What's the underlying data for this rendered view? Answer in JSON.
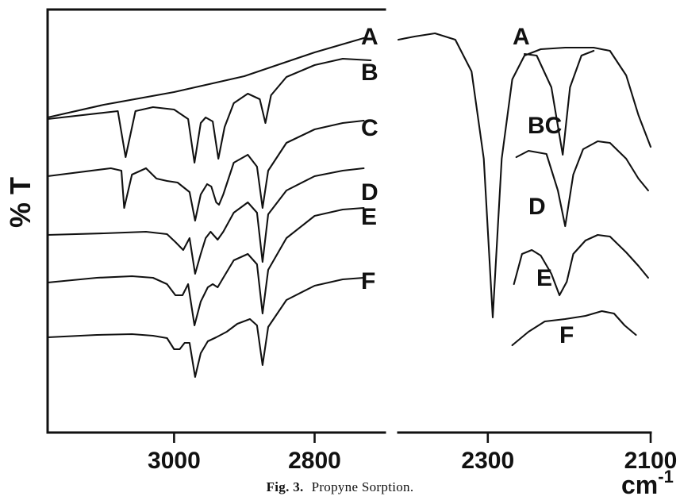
{
  "chart_data": {
    "type": "line",
    "ylabel": "% T",
    "xunit": "cm",
    "xunit_sup": "-1",
    "caption_prefix": "Fig. 3.",
    "caption_text": "Propyne Sorption.",
    "xaxis_left": {
      "range": [
        3180,
        2700
      ],
      "ticks": [
        3000,
        2800
      ],
      "tick_labels": [
        "3000",
        "2800"
      ]
    },
    "xaxis_right": {
      "range": [
        2410,
        2100
      ],
      "ticks": [
        2300,
        2100
      ],
      "tick_labels": [
        "2300",
        "2100"
      ]
    },
    "axis_break": "between 2700 and 2410",
    "series_labels_left": [
      "A",
      "B",
      "C",
      "D",
      "E",
      "F"
    ],
    "series_labels_right": [
      "A",
      "BC",
      "D",
      "E",
      "F"
    ],
    "series": [
      {
        "name": "A",
        "panel": "left",
        "points": [
          [
            3180,
            148
          ],
          [
            3100,
            132
          ],
          [
            3000,
            116
          ],
          [
            2900,
            96
          ],
          [
            2800,
            66
          ],
          [
            2730,
            48
          ]
        ]
      },
      {
        "name": "B",
        "panel": "left",
        "points": [
          [
            3180,
            150
          ],
          [
            3080,
            140
          ],
          [
            3069,
            198
          ],
          [
            3055,
            140
          ],
          [
            3030,
            135
          ],
          [
            3000,
            138
          ],
          [
            2980,
            150
          ],
          [
            2971,
            205
          ],
          [
            2962,
            155
          ],
          [
            2955,
            148
          ],
          [
            2945,
            153
          ],
          [
            2937,
            200
          ],
          [
            2928,
            160
          ],
          [
            2915,
            130
          ],
          [
            2895,
            118
          ],
          [
            2878,
            125
          ],
          [
            2870,
            155
          ],
          [
            2862,
            120
          ],
          [
            2840,
            97
          ],
          [
            2800,
            82
          ],
          [
            2760,
            74
          ],
          [
            2720,
            76
          ]
        ]
      },
      {
        "name": "C",
        "panel": "left",
        "points": [
          [
            3180,
            222
          ],
          [
            3090,
            212
          ],
          [
            3075,
            215
          ],
          [
            3071,
            262
          ],
          [
            3060,
            220
          ],
          [
            3040,
            212
          ],
          [
            3025,
            225
          ],
          [
            3010,
            228
          ],
          [
            2995,
            230
          ],
          [
            2978,
            242
          ],
          [
            2970,
            278
          ],
          [
            2962,
            245
          ],
          [
            2953,
            232
          ],
          [
            2947,
            235
          ],
          [
            2940,
            255
          ],
          [
            2936,
            258
          ],
          [
            2930,
            245
          ],
          [
            2915,
            205
          ],
          [
            2895,
            195
          ],
          [
            2882,
            210
          ],
          [
            2874,
            262
          ],
          [
            2866,
            215
          ],
          [
            2840,
            180
          ],
          [
            2800,
            163
          ],
          [
            2760,
            155
          ],
          [
            2730,
            152
          ]
        ]
      },
      {
        "name": "D",
        "panel": "left",
        "points": [
          [
            3180,
            296
          ],
          [
            3100,
            294
          ],
          [
            3040,
            292
          ],
          [
            3010,
            295
          ],
          [
            2998,
            305
          ],
          [
            2987,
            315
          ],
          [
            2978,
            300
          ],
          [
            2970,
            345
          ],
          [
            2962,
            320
          ],
          [
            2955,
            300
          ],
          [
            2948,
            292
          ],
          [
            2938,
            302
          ],
          [
            2930,
            292
          ],
          [
            2915,
            268
          ],
          [
            2895,
            255
          ],
          [
            2882,
            268
          ],
          [
            2874,
            330
          ],
          [
            2866,
            270
          ],
          [
            2840,
            240
          ],
          [
            2800,
            222
          ],
          [
            2760,
            215
          ],
          [
            2730,
            212
          ]
        ]
      },
      {
        "name": "E",
        "panel": "left",
        "points": [
          [
            3180,
            356
          ],
          [
            3110,
            350
          ],
          [
            3060,
            348
          ],
          [
            3030,
            350
          ],
          [
            3010,
            358
          ],
          [
            2998,
            372
          ],
          [
            2988,
            372
          ],
          [
            2980,
            358
          ],
          [
            2971,
            410
          ],
          [
            2962,
            380
          ],
          [
            2952,
            362
          ],
          [
            2945,
            358
          ],
          [
            2938,
            362
          ],
          [
            2930,
            350
          ],
          [
            2915,
            328
          ],
          [
            2895,
            320
          ],
          [
            2882,
            333
          ],
          [
            2874,
            395
          ],
          [
            2866,
            340
          ],
          [
            2840,
            300
          ],
          [
            2800,
            272
          ],
          [
            2760,
            264
          ],
          [
            2730,
            262
          ]
        ]
      },
      {
        "name": "F",
        "panel": "left",
        "points": [
          [
            3180,
            425
          ],
          [
            3110,
            422
          ],
          [
            3060,
            421
          ],
          [
            3030,
            423
          ],
          [
            3010,
            426
          ],
          [
            3000,
            440
          ],
          [
            2992,
            440
          ],
          [
            2985,
            432
          ],
          [
            2978,
            432
          ],
          [
            2970,
            475
          ],
          [
            2962,
            445
          ],
          [
            2952,
            430
          ],
          [
            2940,
            425
          ],
          [
            2925,
            418
          ],
          [
            2910,
            408
          ],
          [
            2892,
            402
          ],
          [
            2882,
            410
          ],
          [
            2874,
            460
          ],
          [
            2866,
            412
          ],
          [
            2840,
            378
          ],
          [
            2800,
            360
          ],
          [
            2760,
            352
          ],
          [
            2730,
            350
          ]
        ]
      },
      {
        "name": "A",
        "panel": "right",
        "points": [
          [
            2410,
            50
          ],
          [
            2390,
            46
          ],
          [
            2365,
            42
          ],
          [
            2340,
            50
          ],
          [
            2320,
            90
          ],
          [
            2305,
            200
          ],
          [
            2294,
            400
          ],
          [
            2283,
            200
          ],
          [
            2270,
            100
          ],
          [
            2255,
            70
          ],
          [
            2235,
            62
          ],
          [
            2205,
            60
          ],
          [
            2170,
            60
          ],
          [
            2150,
            64
          ],
          [
            2130,
            95
          ],
          [
            2115,
            145
          ],
          [
            2100,
            185
          ]
        ]
      },
      {
        "name": "BC",
        "panel": "right",
        "points": [
          [
            2255,
            68
          ],
          [
            2240,
            70
          ],
          [
            2222,
            110
          ],
          [
            2208,
            195
          ],
          [
            2199,
            110
          ],
          [
            2185,
            70
          ],
          [
            2170,
            64
          ]
        ]
      },
      {
        "name": "D",
        "panel": "right",
        "points": [
          [
            2265,
            198
          ],
          [
            2250,
            190
          ],
          [
            2228,
            194
          ],
          [
            2214,
            240
          ],
          [
            2205,
            285
          ],
          [
            2195,
            220
          ],
          [
            2183,
            188
          ],
          [
            2165,
            178
          ],
          [
            2150,
            180
          ],
          [
            2130,
            200
          ],
          [
            2115,
            225
          ],
          [
            2103,
            240
          ]
        ]
      },
      {
        "name": "E",
        "panel": "right",
        "points": [
          [
            2268,
            358
          ],
          [
            2258,
            320
          ],
          [
            2246,
            315
          ],
          [
            2235,
            322
          ],
          [
            2222,
            345
          ],
          [
            2212,
            372
          ],
          [
            2203,
            355
          ],
          [
            2195,
            320
          ],
          [
            2180,
            303
          ],
          [
            2165,
            296
          ],
          [
            2150,
            298
          ],
          [
            2130,
            318
          ],
          [
            2115,
            335
          ],
          [
            2103,
            350
          ]
        ]
      },
      {
        "name": "F",
        "panel": "right",
        "points": [
          [
            2270,
            435
          ],
          [
            2250,
            418
          ],
          [
            2230,
            405
          ],
          [
            2205,
            402
          ],
          [
            2180,
            398
          ],
          [
            2160,
            392
          ],
          [
            2145,
            395
          ],
          [
            2132,
            410
          ],
          [
            2118,
            422
          ]
        ]
      }
    ]
  }
}
